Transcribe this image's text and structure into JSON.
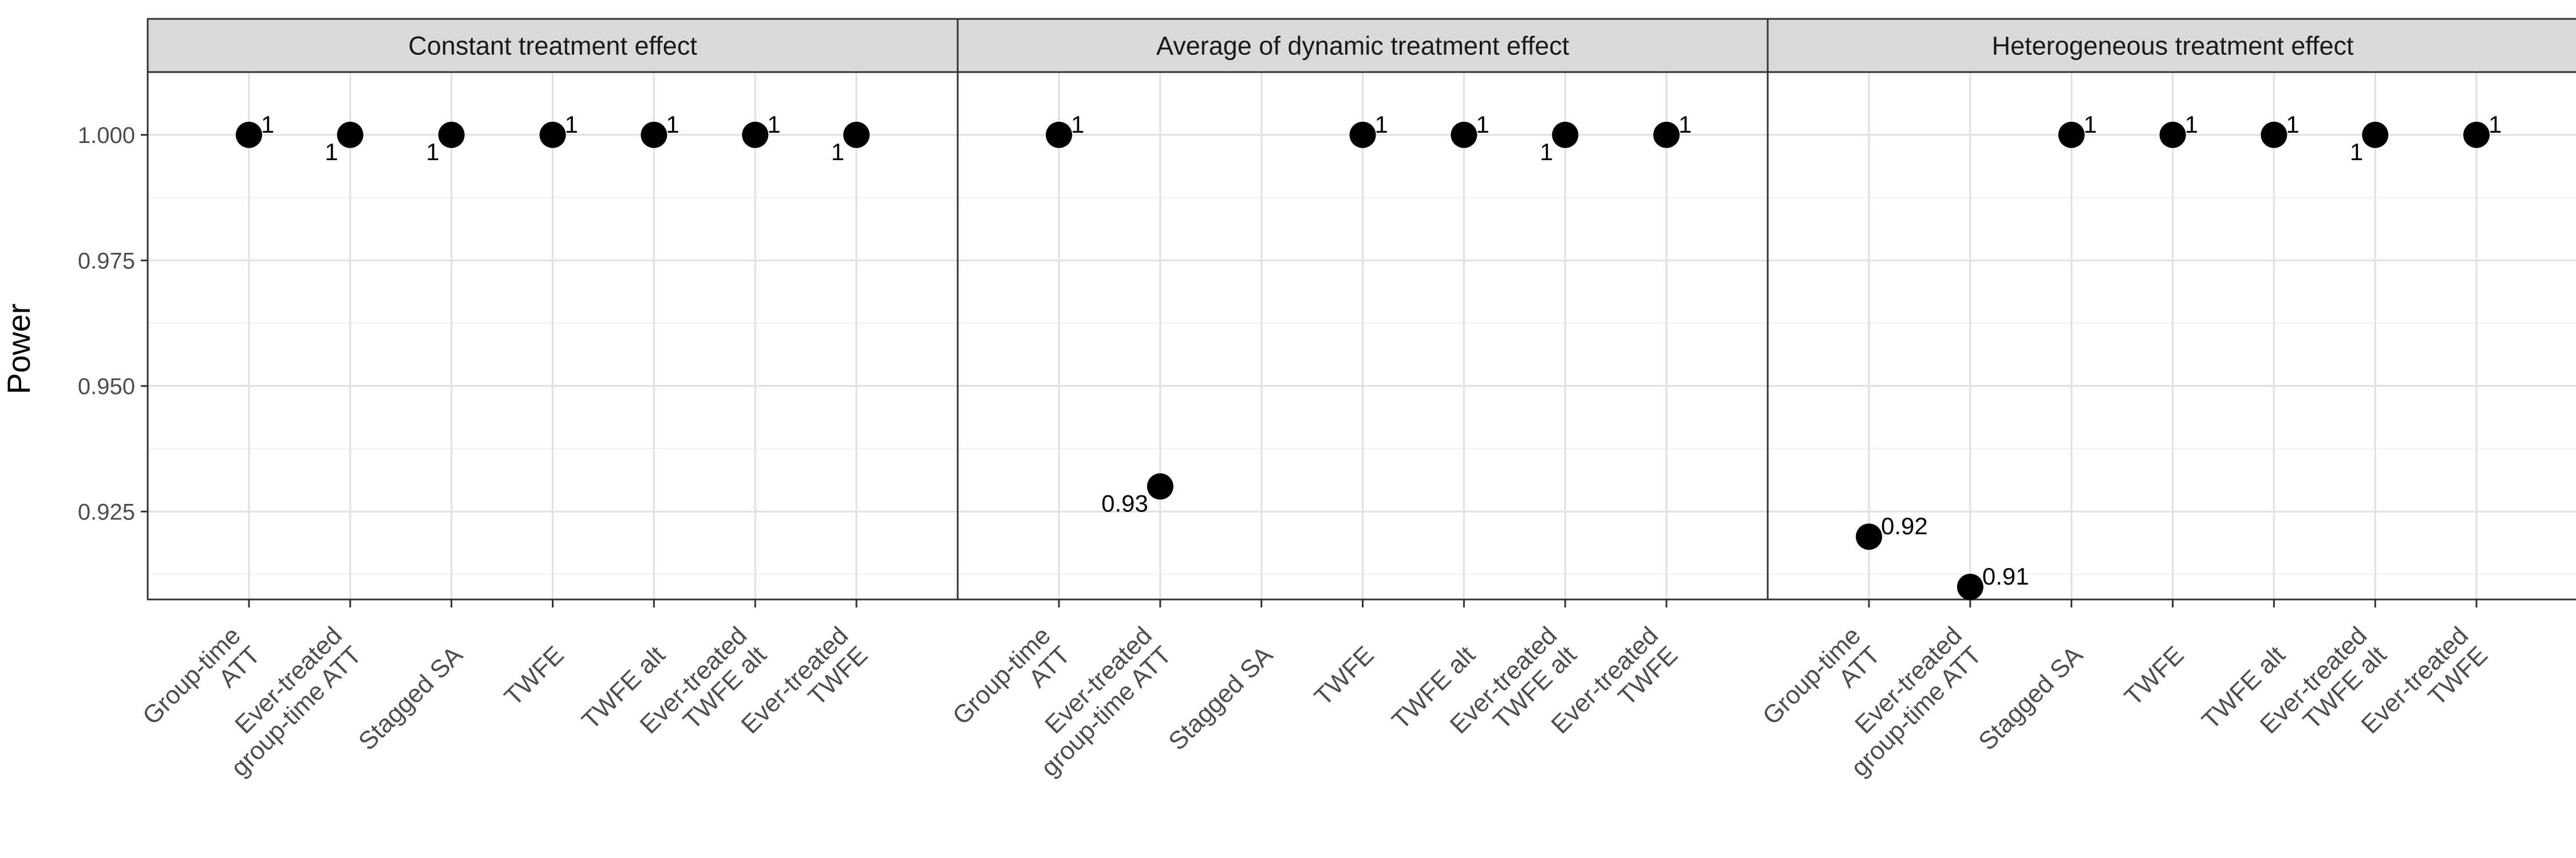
{
  "chart_data": {
    "type": "scatter",
    "ylabel": "Power",
    "xlabel": "",
    "ylim": [
      0.9075,
      1.0125
    ],
    "y_ticks": [
      0.925,
      0.95,
      0.975,
      1.0
    ],
    "y_tick_labels": [
      "0.925",
      "0.950",
      "0.975",
      "1.000"
    ],
    "grid": true,
    "legend": "none",
    "point_color": "#000000",
    "strip_fill": "#d9d9d9",
    "categories": [
      [
        "Group-time",
        "ATT"
      ],
      [
        "Ever-treated",
        "group-time ATT"
      ],
      [
        "Stagged SA"
      ],
      [
        "TWFE"
      ],
      [
        "TWFE alt"
      ],
      [
        "Ever-treated",
        "TWFE alt"
      ],
      [
        "Ever-treated",
        "TWFE"
      ]
    ],
    "panels": [
      {
        "title": "Constant treatment effect",
        "points": [
          {
            "category_index": 0,
            "value": 1.0,
            "label": "1",
            "label_side": "upper-right"
          },
          {
            "category_index": 1,
            "value": 1.0,
            "label": "1",
            "label_side": "lower-left"
          },
          {
            "category_index": 2,
            "value": 1.0,
            "label": "1",
            "label_side": "lower-left"
          },
          {
            "category_index": 3,
            "value": 1.0,
            "label": "1",
            "label_side": "upper-right"
          },
          {
            "category_index": 4,
            "value": 1.0,
            "label": "1",
            "label_side": "upper-right"
          },
          {
            "category_index": 5,
            "value": 1.0,
            "label": "1",
            "label_side": "upper-right"
          },
          {
            "category_index": 6,
            "value": 1.0,
            "label": "1",
            "label_side": "lower-left"
          }
        ]
      },
      {
        "title": "Average of dynamic treatment effect",
        "points": [
          {
            "category_index": 0,
            "value": 1.0,
            "label": "1",
            "label_side": "upper-right"
          },
          {
            "category_index": 1,
            "value": 0.93,
            "label": "0.93",
            "label_side": "lower-left"
          },
          {
            "category_index": 3,
            "value": 1.0,
            "label": "1",
            "label_side": "upper-right"
          },
          {
            "category_index": 4,
            "value": 1.0,
            "label": "1",
            "label_side": "upper-right"
          },
          {
            "category_index": 5,
            "value": 1.0,
            "label": "1",
            "label_side": "lower-left"
          },
          {
            "category_index": 6,
            "value": 1.0,
            "label": "1",
            "label_side": "upper-right"
          }
        ]
      },
      {
        "title": "Heterogeneous treatment effect",
        "points": [
          {
            "category_index": 0,
            "value": 0.92,
            "label": "0.92",
            "label_side": "upper-right"
          },
          {
            "category_index": 1,
            "value": 0.91,
            "label": "0.91",
            "label_side": "upper-right"
          },
          {
            "category_index": 2,
            "value": 1.0,
            "label": "1",
            "label_side": "upper-right"
          },
          {
            "category_index": 3,
            "value": 1.0,
            "label": "1",
            "label_side": "upper-right"
          },
          {
            "category_index": 4,
            "value": 1.0,
            "label": "1",
            "label_side": "upper-right"
          },
          {
            "category_index": 5,
            "value": 1.0,
            "label": "1",
            "label_side": "lower-left"
          },
          {
            "category_index": 6,
            "value": 1.0,
            "label": "1",
            "label_side": "upper-right"
          }
        ]
      }
    ]
  }
}
